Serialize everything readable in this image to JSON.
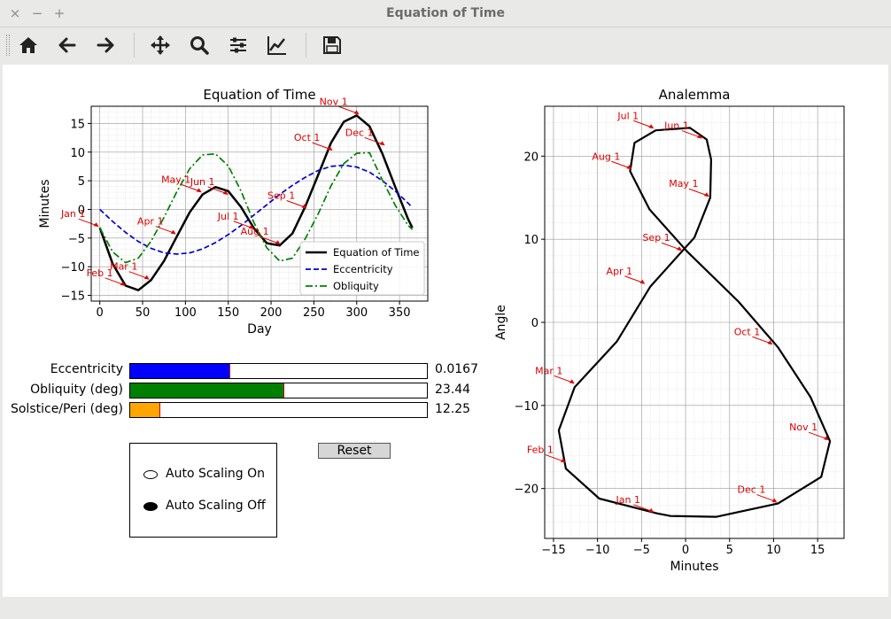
{
  "window": {
    "title": "Equation of Time",
    "controls": [
      "×",
      "−",
      "+"
    ]
  },
  "toolbar": {
    "buttons": [
      "home-icon",
      "back-arrow-icon",
      "forward-arrow-icon",
      "pan-icon",
      "zoom-icon",
      "subplots-config-icon",
      "edit-axis-icon",
      "save-icon"
    ]
  },
  "sliders": [
    {
      "label": "Eccentricity",
      "value": "0.0167",
      "fraction": 0.336,
      "color": "#0000ff"
    },
    {
      "label": "Obliquity (deg)",
      "value": "23.44",
      "fraction": 0.52,
      "color": "#008000"
    },
    {
      "label": "Solstice/Peri (deg)",
      "value": "12.25",
      "fraction": 0.1,
      "color": "#ffa500"
    }
  ],
  "reset_label": "Reset",
  "radio": {
    "options": [
      "Auto Scaling On",
      "Auto Scaling Off"
    ],
    "selected": 1
  },
  "chart_data": [
    {
      "type": "line",
      "title": "Equation of Time",
      "xlabel": "Day",
      "ylabel": "Minutes",
      "xlim": [
        -10,
        383
      ],
      "ylim": [
        -16,
        18
      ],
      "xticks": [
        0,
        50,
        100,
        150,
        200,
        250,
        300,
        350
      ],
      "yticks": [
        -15,
        -10,
        -5,
        0,
        5,
        10,
        15
      ],
      "grid": true,
      "legend": "lower-right",
      "series": [
        {
          "name": "Equation of Time",
          "color": "#000000",
          "dash": "solid",
          "x": [
            0,
            15,
            30,
            45,
            60,
            75,
            90,
            105,
            120,
            135,
            150,
            165,
            180,
            195,
            210,
            225,
            240,
            255,
            270,
            285,
            300,
            315,
            330,
            345,
            360,
            365
          ],
          "y": [
            -3.2,
            -9.5,
            -13.3,
            -14.1,
            -12.3,
            -9.0,
            -4.7,
            -0.5,
            2.6,
            3.9,
            3.2,
            0.4,
            -3.3,
            -5.9,
            -6.3,
            -4.2,
            0.5,
            6.0,
            11.6,
            15.3,
            16.4,
            14.5,
            9.7,
            3.9,
            -1.7,
            -3.2
          ]
        },
        {
          "name": "Eccentricity",
          "color": "#0000cc",
          "dash": "dashed",
          "x": [
            0,
            15,
            30,
            45,
            60,
            75,
            90,
            105,
            120,
            135,
            150,
            165,
            180,
            195,
            210,
            225,
            240,
            255,
            270,
            285,
            300,
            315,
            330,
            345,
            360,
            365
          ],
          "y": [
            0.0,
            -2.1,
            -4.0,
            -5.6,
            -6.8,
            -7.6,
            -7.8,
            -7.6,
            -6.9,
            -5.8,
            -4.4,
            -2.8,
            -1.0,
            0.8,
            2.6,
            4.2,
            5.6,
            6.8,
            7.5,
            7.7,
            7.4,
            6.5,
            5.0,
            3.2,
            1.1,
            0.3
          ]
        },
        {
          "name": "Obliquity",
          "color": "#008000",
          "dash": "dashdot",
          "x": [
            0,
            15,
            30,
            45,
            60,
            75,
            90,
            105,
            120,
            135,
            150,
            165,
            180,
            195,
            210,
            225,
            240,
            255,
            270,
            285,
            300,
            315,
            330,
            345,
            360,
            365
          ],
          "y": [
            -3.2,
            -7.4,
            -9.3,
            -8.5,
            -5.5,
            -1.4,
            3.1,
            7.1,
            9.5,
            9.7,
            7.6,
            3.2,
            -2.3,
            -6.7,
            -9.0,
            -8.5,
            -5.1,
            -0.8,
            4.1,
            8.0,
            9.8,
            9.9,
            5.1,
            0.7,
            -2.8,
            -3.5
          ]
        }
      ],
      "annotations": [
        {
          "text": "Jan 1",
          "day": 0,
          "value": -3.2
        },
        {
          "text": "Feb 1",
          "day": 31,
          "value": -13.5
        },
        {
          "text": "Mar 1",
          "day": 59,
          "value": -12.4
        },
        {
          "text": "Apr 1",
          "day": 90,
          "value": -4.5
        },
        {
          "text": "May 1",
          "day": 120,
          "value": 2.8
        },
        {
          "text": "Jun 1",
          "day": 151,
          "value": 2.4
        },
        {
          "text": "Jul 1",
          "day": 181,
          "value": -3.6
        },
        {
          "text": "Aug 1",
          "day": 212,
          "value": -6.3
        },
        {
          "text": "Sep 1",
          "day": 243,
          "value": 0.0
        },
        {
          "text": "Oct 1",
          "day": 273,
          "value": 10.1
        },
        {
          "text": "Nov 1",
          "day": 304,
          "value": 16.4
        },
        {
          "text": "Dec 1",
          "day": 334,
          "value": 11.0
        }
      ]
    },
    {
      "type": "line",
      "title": "Analemma",
      "xlabel": "Minutes",
      "ylabel": "Angle",
      "xlim": [
        -16,
        18
      ],
      "ylim": [
        -26,
        26
      ],
      "xticks": [
        -15,
        -10,
        -5,
        0,
        5,
        10,
        15
      ],
      "yticks": [
        -20,
        -10,
        0,
        10,
        20
      ],
      "grid": true,
      "series": [
        {
          "name": "",
          "color": "#000000",
          "x": [
            -3.2,
            -9.8,
            -13.6,
            -14.4,
            -12.6,
            -7.8,
            -4.0,
            1.0,
            2.8,
            2.9,
            2.4,
            0.5,
            -3.4,
            -5.8,
            -6.3,
            -4.1,
            0.2,
            6.0,
            10.5,
            14.2,
            16.4,
            15.4,
            10.5,
            3.5,
            -1.7,
            -3.2
          ],
          "y": [
            -23.0,
            -21.2,
            -17.6,
            -13.0,
            -7.8,
            -2.3,
            4.3,
            10.2,
            15.0,
            19.6,
            22.0,
            23.4,
            23.1,
            21.6,
            18.2,
            13.6,
            8.5,
            2.5,
            -3.0,
            -9.0,
            -14.3,
            -18.6,
            -21.8,
            -23.4,
            -23.3,
            -23.0
          ]
        }
      ],
      "annotations": [
        {
          "text": "Jan 1",
          "x": -3.5,
          "y": -23.0
        },
        {
          "text": "Feb 1",
          "x": -13.5,
          "y": -17.0
        },
        {
          "text": "Mar 1",
          "x": -12.5,
          "y": -7.5
        },
        {
          "text": "Apr 1",
          "x": -4.5,
          "y": 4.5
        },
        {
          "text": "May 1",
          "x": 2.8,
          "y": 15.0
        },
        {
          "text": "Jun 1",
          "x": 2.0,
          "y": 22.0
        },
        {
          "text": "Jul 1",
          "x": -3.5,
          "y": 23.2
        },
        {
          "text": "Aug 1",
          "x": -6.0,
          "y": 18.3
        },
        {
          "text": "Sep 1",
          "x": -0.3,
          "y": 8.5
        },
        {
          "text": "Oct 1",
          "x": 10.0,
          "y": -2.8
        },
        {
          "text": "Nov 1",
          "x": 16.4,
          "y": -14.3
        },
        {
          "text": "Dec 1",
          "x": 10.5,
          "y": -21.8
        }
      ]
    }
  ]
}
